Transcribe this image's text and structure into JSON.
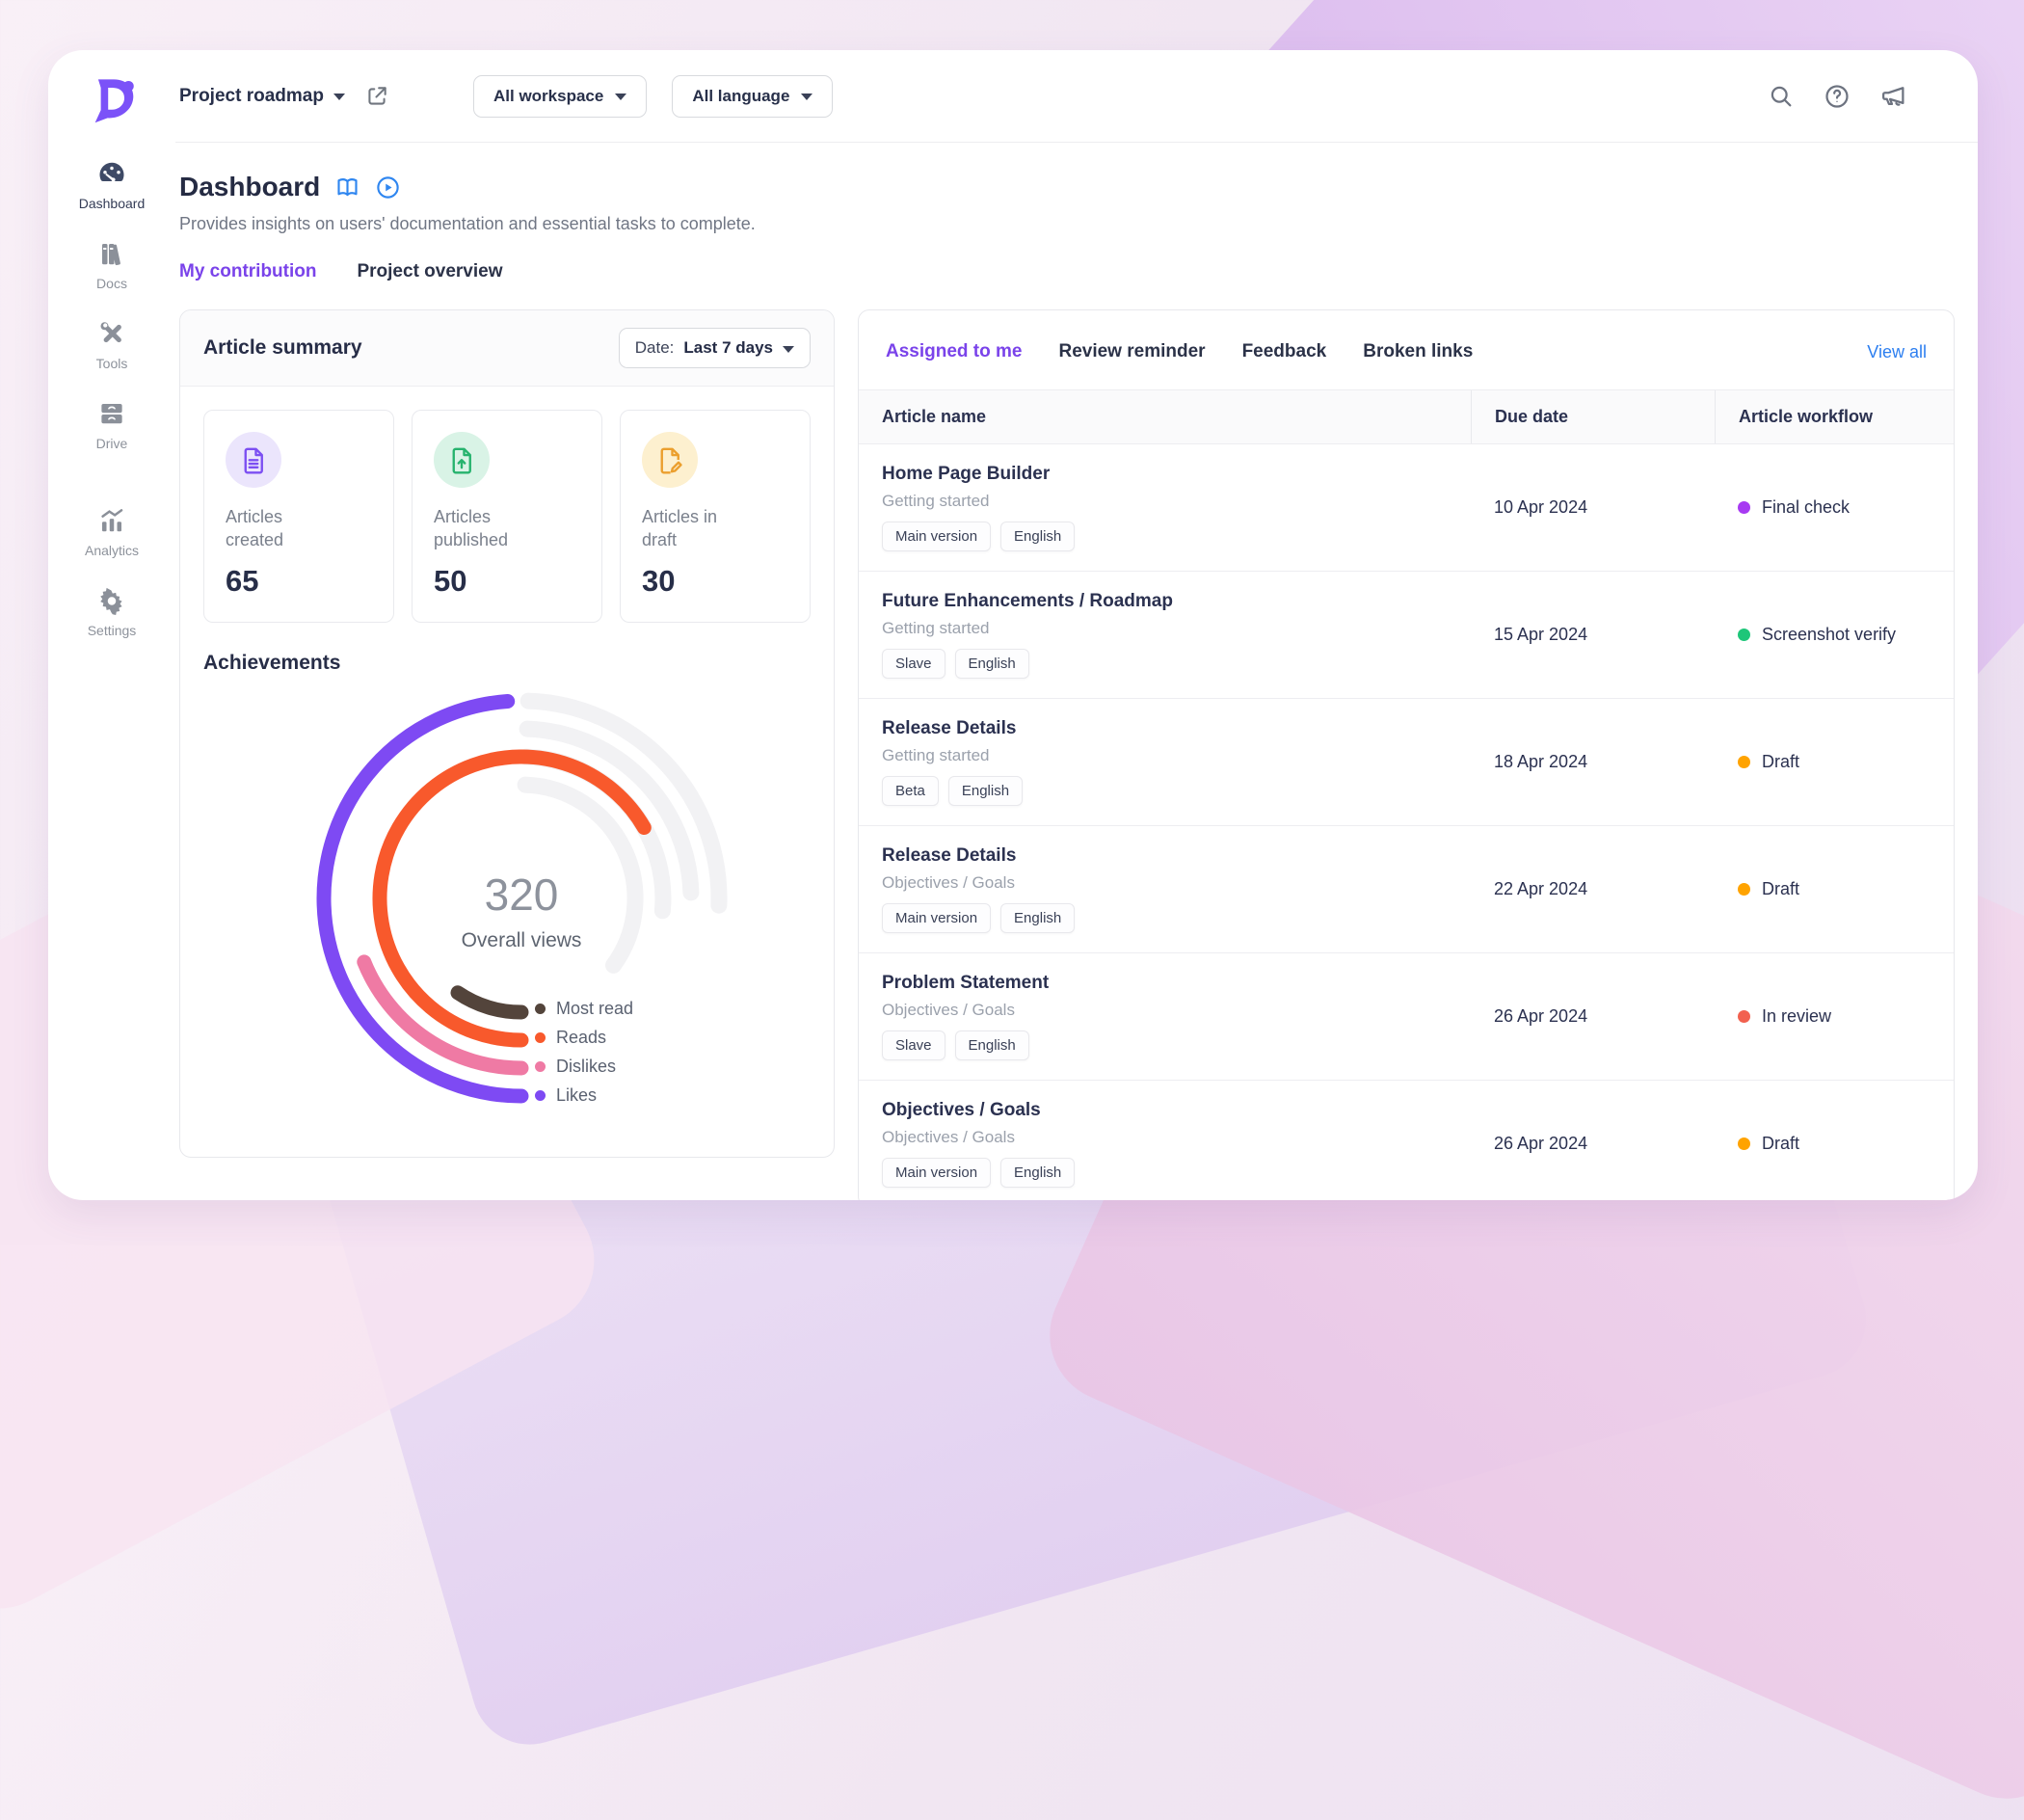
{
  "topbar": {
    "project_name": "Project roadmap",
    "workspace_dropdown": "All workspace",
    "language_dropdown": "All language"
  },
  "sidebar": {
    "items": [
      {
        "label": "Dashboard",
        "icon": "dashboard-gauge-icon",
        "active": true
      },
      {
        "label": "Docs",
        "icon": "docs-books-icon",
        "active": false
      },
      {
        "label": "Tools",
        "icon": "tools-icon",
        "active": false
      },
      {
        "label": "Drive",
        "icon": "drive-drawer-icon",
        "active": false
      }
    ],
    "bottom_items": [
      {
        "label": "Analytics",
        "icon": "analytics-chart-icon",
        "active": false
      },
      {
        "label": "Settings",
        "icon": "gear-icon",
        "active": false
      }
    ]
  },
  "page": {
    "title": "Dashboard",
    "description": "Provides insights on users' documentation and essential tasks to complete.",
    "tabs": [
      {
        "label": "My contribution",
        "active": true
      },
      {
        "label": "Project overview",
        "active": false
      }
    ]
  },
  "article_summary": {
    "title": "Article summary",
    "date_label": "Date:",
    "date_value": "Last 7 days",
    "stats": [
      {
        "label": "Articles created",
        "value": "65",
        "icon": "file-lines-icon",
        "icon_color": "#7c4ff2",
        "icon_bg": "#ebe5fc"
      },
      {
        "label": "Articles published",
        "value": "50",
        "icon": "file-upload-icon",
        "icon_color": "#27b36e",
        "icon_bg": "#d9f3e6"
      },
      {
        "label": "Articles in draft",
        "value": "30",
        "icon": "file-edit-icon",
        "icon_color": "#eb9f2e",
        "icon_bg": "#fdf0cf"
      }
    ],
    "achievements_title": "Achievements"
  },
  "chart_data": {
    "type": "radial_gauge",
    "title": "Achievements",
    "center_value": "320",
    "center_label": "Overall views",
    "legend_position": "bottom-right inside chart",
    "note": "Concentric progress rings; fills end at 6 o'clock sweeping counter-clockwise; grey tracks sweep clockwise from 12 o'clock. Degrees measured clockwise from 12 o'clock.",
    "track_color": "#f2f2f4",
    "track_start_deg": 2,
    "series": [
      {
        "name": "Most read",
        "color": "#53443b",
        "ring": "innermost",
        "fill_start_deg": -146,
        "fill_end_deg": -180,
        "track_end_deg": 126,
        "approx_pct_of_circle": 9
      },
      {
        "name": "Reads",
        "color": "#f8592c",
        "ring": "second",
        "fill_start_deg": 60,
        "fill_end_deg": -180,
        "track_end_deg": 95,
        "approx_pct_of_circle": 67
      },
      {
        "name": "Dislikes",
        "color": "#ef7aa4",
        "ring": "third",
        "fill_start_deg": -112,
        "fill_end_deg": -180,
        "track_end_deg": 88,
        "approx_pct_of_circle": 19
      },
      {
        "name": "Likes",
        "color": "#7e4af3",
        "ring": "outermost",
        "fill_start_deg": -4,
        "fill_end_deg": -180,
        "track_end_deg": 92,
        "approx_pct_of_circle": 49
      }
    ]
  },
  "tasks_panel": {
    "tabs": [
      {
        "label": "Assigned to me",
        "active": true
      },
      {
        "label": "Review reminder",
        "active": false
      },
      {
        "label": "Feedback",
        "active": false
      },
      {
        "label": "Broken links",
        "active": false
      }
    ],
    "view_all": "View all",
    "table": {
      "columns": [
        "Article name",
        "Due date",
        "Article workflow"
      ],
      "rows": [
        {
          "name": "Home Page Builder",
          "category": "Getting started",
          "badges": [
            "Main version",
            "English"
          ],
          "due": "10 Apr 2024",
          "status": {
            "label": "Final check",
            "color": "#a73af2"
          }
        },
        {
          "name": "Future Enhancements / Roadmap",
          "category": "Getting started",
          "badges": [
            "Slave",
            "English"
          ],
          "due": "15 Apr 2024",
          "status": {
            "label": "Screenshot verify",
            "color": "#1ec679"
          }
        },
        {
          "name": "Release Details",
          "category": "Getting started",
          "badges": [
            "Beta",
            "English"
          ],
          "due": "18 Apr 2024",
          "status": {
            "label": "Draft",
            "color": "#ffa300"
          }
        },
        {
          "name": "Release Details",
          "category": "Objectives / Goals",
          "badges": [
            "Main version",
            "English"
          ],
          "due": "22 Apr 2024",
          "status": {
            "label": "Draft",
            "color": "#ffa300"
          }
        },
        {
          "name": "Problem Statement",
          "category": "Objectives / Goals",
          "badges": [
            "Slave",
            "English"
          ],
          "due": "26 Apr 2024",
          "status": {
            "label": "In review",
            "color": "#f2614f"
          }
        },
        {
          "name": "Objectives / Goals",
          "category": "Objectives / Goals",
          "badges": [
            "Main version",
            "English"
          ],
          "due": "26 Apr 2024",
          "status": {
            "label": "Draft",
            "color": "#ffa300"
          }
        }
      ]
    }
  },
  "colors": {
    "accent_purple": "#7a43ea",
    "link_blue": "#2d7ff0",
    "brand_purple": "#7b52f8",
    "title_icon_blue": "#2f86f0"
  }
}
